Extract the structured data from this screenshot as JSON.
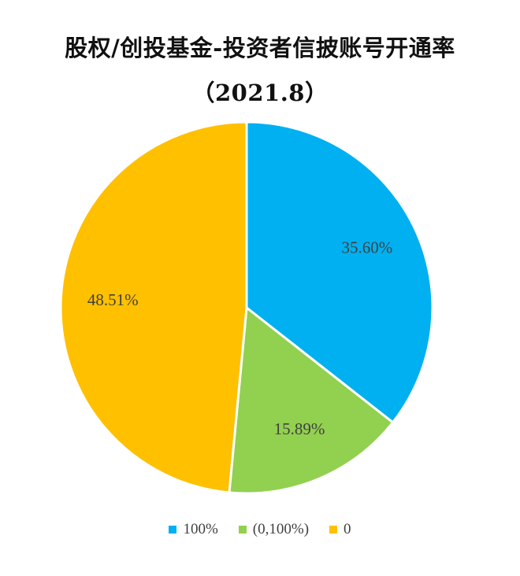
{
  "chart_data": {
    "type": "pie",
    "title": "股权/创投基金-投资者信披账号开通率",
    "subtitle": "（2021.8）",
    "categories": [
      "100%",
      "(0,100%)",
      "0"
    ],
    "values": [
      35.6,
      15.89,
      48.51
    ],
    "data_labels": [
      "35.60%",
      "15.89%",
      "48.51%"
    ],
    "colors": [
      "#00B0F0",
      "#92D050",
      "#FFC000"
    ],
    "start_angle_deg": 0,
    "direction": "clockwise",
    "legend_position": "bottom"
  }
}
